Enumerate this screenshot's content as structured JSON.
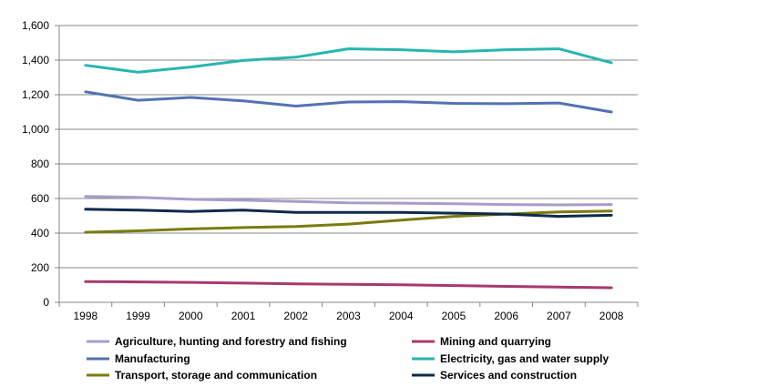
{
  "chart_data": {
    "type": "line",
    "title": "",
    "xlabel": "",
    "ylabel": "",
    "categories": [
      "1998",
      "1999",
      "2000",
      "2001",
      "2002",
      "2003",
      "2004",
      "2005",
      "2006",
      "2007",
      "2008"
    ],
    "ylim": [
      0,
      1600
    ],
    "yticks": [
      "0",
      "200",
      "400",
      "600",
      "800",
      "1,000",
      "1,200",
      "1,400",
      "1,600"
    ],
    "grid": "horizontal",
    "legend_position": "bottom",
    "series": [
      {
        "name": "Agriculture, hunting and forestry and fishing",
        "color": "#A99BCB",
        "values": [
          612,
          607,
          595,
          590,
          583,
          575,
          573,
          570,
          565,
          563,
          565
        ]
      },
      {
        "name": "Mining and quarrying",
        "color": "#A8386E",
        "values": [
          120,
          118,
          115,
          111,
          107,
          104,
          101,
          97,
          92,
          88,
          84
        ]
      },
      {
        "name": "Manufacturing",
        "color": "#5272B4",
        "values": [
          1217,
          1168,
          1184,
          1164,
          1134,
          1158,
          1160,
          1150,
          1148,
          1152,
          1100
        ]
      },
      {
        "name": "Electricity, gas and water supply",
        "color": "#26B6B0",
        "values": [
          1370,
          1330,
          1360,
          1398,
          1417,
          1465,
          1460,
          1448,
          1460,
          1465,
          1385
        ]
      },
      {
        "name": "Transport, storage and communication",
        "color": "#7B7A0E",
        "values": [
          405,
          413,
          424,
          432,
          438,
          452,
          475,
          497,
          510,
          522,
          528
        ]
      },
      {
        "name": "Services and construction",
        "color": "#0D2A4C",
        "values": [
          538,
          533,
          525,
          533,
          520,
          520,
          520,
          515,
          510,
          497,
          503
        ]
      }
    ]
  }
}
